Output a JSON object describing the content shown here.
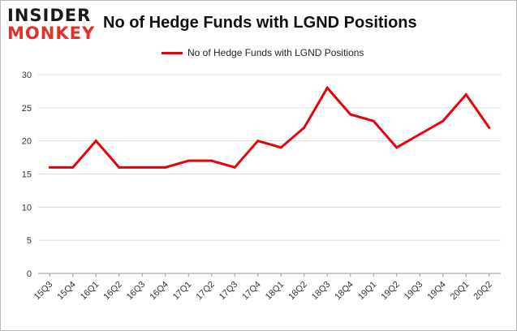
{
  "logo": {
    "line1": "INSIDER",
    "line2": "MONKEY"
  },
  "chart_data": {
    "type": "line",
    "title": "No of Hedge Funds with LGND Positions",
    "xlabel": "",
    "ylabel": "",
    "categories": [
      "15Q3",
      "15Q4",
      "16Q1",
      "16Q2",
      "16Q3",
      "16Q4",
      "17Q1",
      "17Q2",
      "17Q3",
      "17Q4",
      "18Q1",
      "18Q2",
      "18Q3",
      "18Q4",
      "19Q1",
      "19Q2",
      "19Q3",
      "19Q4",
      "20Q1",
      "20Q2"
    ],
    "series": [
      {
        "name": "No of Hedge Funds with LGND Positions",
        "color": "#e8000b",
        "values": [
          16,
          16,
          20,
          16,
          16,
          16,
          17,
          17,
          16,
          20,
          19,
          22,
          28,
          24,
          23,
          19,
          21,
          23,
          27,
          22
        ]
      }
    ],
    "ylim": [
      0,
      30
    ],
    "yticks": [
      0,
      5,
      10,
      15,
      20,
      25,
      30
    ],
    "grid": true,
    "legend": "top-center"
  }
}
